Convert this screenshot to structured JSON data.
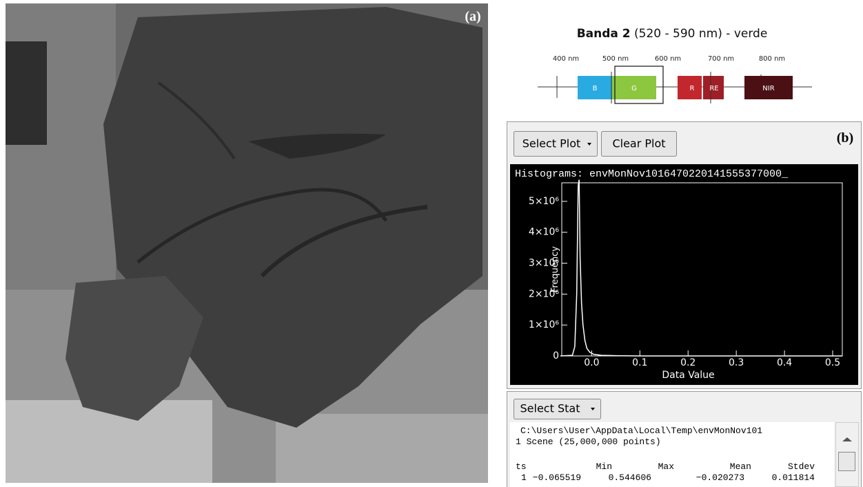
{
  "panel_a": {
    "label": "(a)"
  },
  "band_diagram": {
    "title_bold": "Banda 2",
    "title_rest": "(520 - 590 nm) - verde",
    "wavelengths": [
      "400 nm",
      "500 nm",
      "600 nm",
      "700 nm",
      "800 nm"
    ],
    "bands": [
      "B",
      "G",
      "R",
      "RE",
      "NIR"
    ]
  },
  "panel_b": {
    "label": "(b)",
    "buttons": [
      "Select Plot",
      "Clear Plot"
    ],
    "histogram": {
      "type": "line",
      "title": "Histograms: envMonNov1016470220141555377000_",
      "x_label": "Data Value",
      "y_label": "Frequency",
      "color": "#ffffff",
      "x": [
        -0.065,
        -0.04,
        -0.035,
        -0.031,
        -0.028,
        -0.026,
        -0.024,
        -0.021,
        -0.018,
        -0.014,
        -0.01,
        -0.004,
        0.005,
        0.02,
        0.05,
        0.1,
        0.3,
        0.52
      ],
      "values": [
        0,
        20000,
        300000,
        2000000,
        5500000,
        5700000,
        3200000,
        1700000,
        1000000,
        500000,
        250000,
        120000,
        50000,
        20000,
        8000,
        0,
        0,
        0
      ],
      "xlim": [
        -0.062,
        0.52
      ],
      "ylim": [
        0,
        5600000
      ],
      "xticks": [
        {
          "value": 0,
          "label": "0.0"
        },
        0.1,
        0.2,
        0.3,
        0.4,
        0.5
      ],
      "yticks": [
        0,
        {
          "value": 1000000,
          "label": "1×10⁶"
        },
        {
          "value": 2000000,
          "label": "2×10⁶"
        },
        {
          "value": 3000000,
          "label": "3×10⁶"
        },
        {
          "value": 4000000,
          "label": "4×10⁶"
        },
        {
          "value": 5000000,
          "label": "5×10⁶"
        }
      ]
    }
  },
  "stats": {
    "button": "Select Stat",
    "lines": [
      "C:\\Users\\User\\AppData\\Local\\Temp\\envMonNov101",
      "1 Scene (25,000,000 points)"
    ],
    "table": {
      "header": [
        "ts",
        "Min",
        "Max",
        "Mean",
        "Stdev"
      ],
      "rows": [
        [
          "1",
          "−0.065519",
          "0.544606",
          "−0.020273",
          "0.011814"
        ]
      ]
    }
  }
}
